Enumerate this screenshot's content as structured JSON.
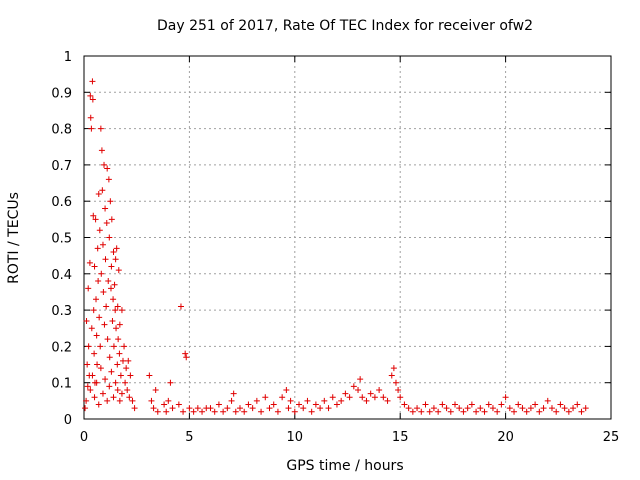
{
  "chart_data": {
    "type": "scatter",
    "title": "Day 251 of 2017, Rate Of TEC Index for receiver ofw2",
    "xlabel": "GPS time / hours",
    "ylabel": "ROTI / TECUs",
    "xlim": [
      0,
      25
    ],
    "ylim": [
      0,
      1
    ],
    "x_ticks": [
      "0",
      "5",
      "10",
      "15",
      "20",
      "25"
    ],
    "y_ticks": [
      "0",
      "0.1",
      "0.2",
      "0.3",
      "0.4",
      "0.5",
      "0.6",
      "0.7",
      "0.8",
      "0.9",
      "1"
    ],
    "grid": true,
    "marker": "plus",
    "color": "#e00000",
    "points": [
      [
        0.05,
        0.03
      ],
      [
        0.1,
        0.05
      ],
      [
        0.12,
        0.27
      ],
      [
        0.15,
        0.15
      ],
      [
        0.18,
        0.09
      ],
      [
        0.2,
        0.36
      ],
      [
        0.22,
        0.2
      ],
      [
        0.25,
        0.12
      ],
      [
        0.28,
        0.43
      ],
      [
        0.3,
        0.89
      ],
      [
        0.32,
        0.83
      ],
      [
        0.35,
        0.8
      ],
      [
        0.37,
        0.25
      ],
      [
        0.4,
        0.93
      ],
      [
        0.42,
        0.88
      ],
      [
        0.44,
        0.56
      ],
      [
        0.46,
        0.3
      ],
      [
        0.48,
        0.18
      ],
      [
        0.5,
        0.42
      ],
      [
        0.52,
        0.1
      ],
      [
        0.55,
        0.55
      ],
      [
        0.57,
        0.33
      ],
      [
        0.6,
        0.23
      ],
      [
        0.62,
        0.15
      ],
      [
        0.65,
        0.47
      ],
      [
        0.67,
        0.38
      ],
      [
        0.7,
        0.62
      ],
      [
        0.72,
        0.28
      ],
      [
        0.75,
        0.52
      ],
      [
        0.77,
        0.2
      ],
      [
        0.8,
        0.8
      ],
      [
        0.82,
        0.4
      ],
      [
        0.85,
        0.74
      ],
      [
        0.87,
        0.63
      ],
      [
        0.9,
        0.48
      ],
      [
        0.92,
        0.35
      ],
      [
        0.95,
        0.7
      ],
      [
        0.97,
        0.26
      ],
      [
        1.0,
        0.58
      ],
      [
        1.02,
        0.44
      ],
      [
        1.05,
        0.31
      ],
      [
        1.08,
        0.54
      ],
      [
        1.1,
        0.69
      ],
      [
        1.12,
        0.22
      ],
      [
        1.15,
        0.38
      ],
      [
        1.18,
        0.66
      ],
      [
        1.2,
        0.5
      ],
      [
        1.22,
        0.17
      ],
      [
        1.25,
        0.6
      ],
      [
        1.28,
        0.36
      ],
      [
        1.3,
        0.42
      ],
      [
        1.32,
        0.55
      ],
      [
        1.35,
        0.27
      ],
      [
        1.38,
        0.33
      ],
      [
        1.4,
        0.46
      ],
      [
        1.42,
        0.2
      ],
      [
        1.45,
        0.37
      ],
      [
        1.48,
        0.3
      ],
      [
        1.5,
        0.44
      ],
      [
        1.52,
        0.25
      ],
      [
        1.55,
        0.47
      ],
      [
        1.58,
        0.15
      ],
      [
        1.6,
        0.31
      ],
      [
        1.62,
        0.22
      ],
      [
        1.65,
        0.41
      ],
      [
        1.68,
        0.18
      ],
      [
        1.7,
        0.26
      ],
      [
        1.75,
        0.12
      ],
      [
        1.8,
        0.3
      ],
      [
        1.85,
        0.16
      ],
      [
        1.9,
        0.2
      ],
      [
        1.95,
        0.1
      ],
      [
        2.0,
        0.14
      ],
      [
        2.05,
        0.08
      ],
      [
        2.1,
        0.16
      ],
      [
        2.15,
        0.06
      ],
      [
        2.2,
        0.12
      ],
      [
        2.3,
        0.05
      ],
      [
        2.4,
        0.03
      ],
      [
        0.3,
        0.08
      ],
      [
        0.4,
        0.12
      ],
      [
        0.5,
        0.06
      ],
      [
        0.6,
        0.1
      ],
      [
        0.7,
        0.04
      ],
      [
        0.8,
        0.14
      ],
      [
        0.9,
        0.07
      ],
      [
        1.0,
        0.11
      ],
      [
        1.1,
        0.05
      ],
      [
        1.2,
        0.09
      ],
      [
        1.3,
        0.13
      ],
      [
        1.4,
        0.06
      ],
      [
        1.5,
        0.1
      ],
      [
        1.6,
        0.08
      ],
      [
        1.7,
        0.05
      ],
      [
        1.8,
        0.07
      ],
      [
        3.1,
        0.12
      ],
      [
        3.2,
        0.05
      ],
      [
        3.3,
        0.03
      ],
      [
        3.4,
        0.08
      ],
      [
        3.5,
        0.02
      ],
      [
        3.8,
        0.04
      ],
      [
        3.9,
        0.02
      ],
      [
        4.0,
        0.05
      ],
      [
        4.1,
        0.1
      ],
      [
        4.2,
        0.03
      ],
      [
        4.6,
        0.31
      ],
      [
        4.8,
        0.18
      ],
      [
        4.85,
        0.17
      ],
      [
        4.5,
        0.04
      ],
      [
        4.7,
        0.02
      ],
      [
        5.0,
        0.03
      ],
      [
        5.2,
        0.02
      ],
      [
        5.4,
        0.03
      ],
      [
        5.6,
        0.02
      ],
      [
        5.8,
        0.03
      ],
      [
        6.0,
        0.03
      ],
      [
        6.2,
        0.02
      ],
      [
        6.4,
        0.04
      ],
      [
        6.6,
        0.02
      ],
      [
        6.8,
        0.03
      ],
      [
        7.0,
        0.05
      ],
      [
        7.1,
        0.07
      ],
      [
        7.2,
        0.02
      ],
      [
        7.4,
        0.03
      ],
      [
        7.6,
        0.02
      ],
      [
        7.8,
        0.04
      ],
      [
        8.0,
        0.03
      ],
      [
        8.2,
        0.05
      ],
      [
        8.4,
        0.02
      ],
      [
        8.6,
        0.06
      ],
      [
        8.8,
        0.03
      ],
      [
        9.0,
        0.04
      ],
      [
        9.2,
        0.02
      ],
      [
        9.4,
        0.06
      ],
      [
        9.6,
        0.08
      ],
      [
        9.7,
        0.03
      ],
      [
        9.8,
        0.05
      ],
      [
        10.0,
        0.02
      ],
      [
        10.2,
        0.04
      ],
      [
        10.4,
        0.03
      ],
      [
        10.6,
        0.05
      ],
      [
        10.8,
        0.02
      ],
      [
        11.0,
        0.04
      ],
      [
        11.2,
        0.03
      ],
      [
        11.4,
        0.05
      ],
      [
        11.6,
        0.03
      ],
      [
        11.8,
        0.06
      ],
      [
        12.0,
        0.04
      ],
      [
        12.2,
        0.05
      ],
      [
        12.4,
        0.07
      ],
      [
        12.6,
        0.06
      ],
      [
        12.8,
        0.09
      ],
      [
        13.0,
        0.08
      ],
      [
        13.1,
        0.11
      ],
      [
        13.2,
        0.06
      ],
      [
        13.4,
        0.05
      ],
      [
        13.6,
        0.07
      ],
      [
        13.8,
        0.06
      ],
      [
        14.0,
        0.08
      ],
      [
        14.2,
        0.06
      ],
      [
        14.4,
        0.05
      ],
      [
        14.6,
        0.12
      ],
      [
        14.7,
        0.14
      ],
      [
        14.8,
        0.1
      ],
      [
        14.9,
        0.08
      ],
      [
        15.0,
        0.06
      ],
      [
        15.2,
        0.04
      ],
      [
        15.4,
        0.03
      ],
      [
        15.6,
        0.02
      ],
      [
        15.8,
        0.03
      ],
      [
        16.0,
        0.02
      ],
      [
        16.2,
        0.04
      ],
      [
        16.4,
        0.02
      ],
      [
        16.6,
        0.03
      ],
      [
        16.8,
        0.02
      ],
      [
        17.0,
        0.04
      ],
      [
        17.2,
        0.03
      ],
      [
        17.4,
        0.02
      ],
      [
        17.6,
        0.04
      ],
      [
        17.8,
        0.03
      ],
      [
        18.0,
        0.02
      ],
      [
        18.2,
        0.03
      ],
      [
        18.4,
        0.04
      ],
      [
        18.6,
        0.02
      ],
      [
        18.8,
        0.03
      ],
      [
        19.0,
        0.02
      ],
      [
        19.2,
        0.04
      ],
      [
        19.4,
        0.03
      ],
      [
        19.6,
        0.02
      ],
      [
        19.8,
        0.04
      ],
      [
        20.0,
        0.06
      ],
      [
        20.2,
        0.03
      ],
      [
        20.4,
        0.02
      ],
      [
        20.6,
        0.04
      ],
      [
        20.8,
        0.03
      ],
      [
        21.0,
        0.02
      ],
      [
        21.2,
        0.03
      ],
      [
        21.4,
        0.04
      ],
      [
        21.6,
        0.02
      ],
      [
        21.8,
        0.03
      ],
      [
        22.0,
        0.05
      ],
      [
        22.2,
        0.03
      ],
      [
        22.4,
        0.02
      ],
      [
        22.6,
        0.04
      ],
      [
        22.8,
        0.03
      ],
      [
        23.0,
        0.02
      ],
      [
        23.2,
        0.03
      ],
      [
        23.4,
        0.04
      ],
      [
        23.6,
        0.02
      ],
      [
        23.8,
        0.03
      ]
    ]
  }
}
